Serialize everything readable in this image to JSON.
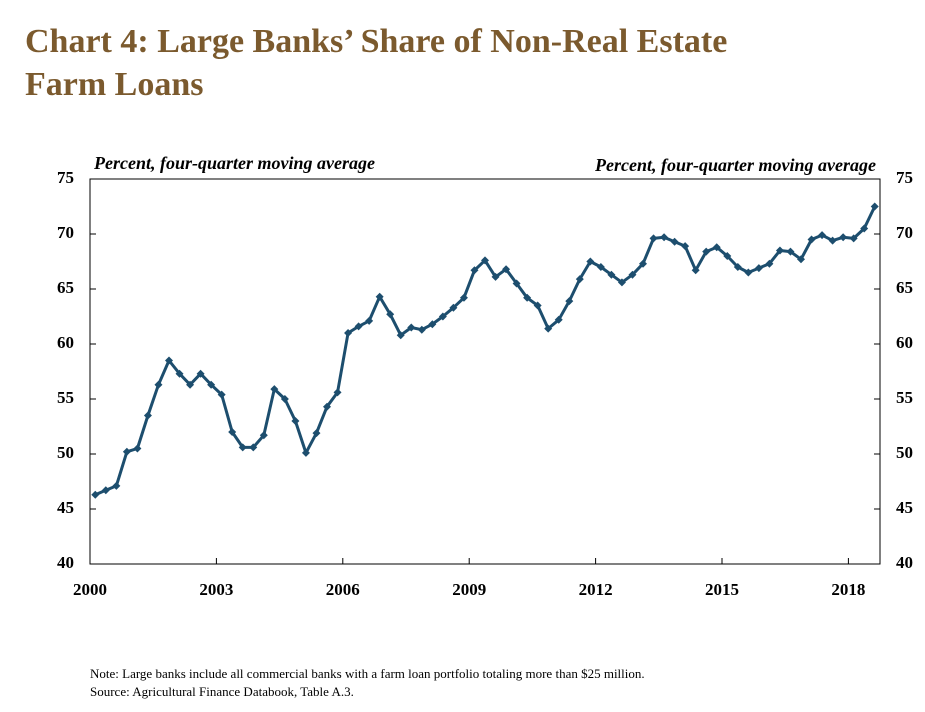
{
  "chart_data": {
    "type": "line",
    "title_lines": [
      "Chart 4: Large Banks’ Share of Non-Real Estate",
      "Farm Loans"
    ],
    "ylabel": "Percent, four-quarter moving average",
    "y2label": "Percent, four-quarter moving average",
    "x": [
      2000.125,
      2000.375,
      2000.625,
      2000.875,
      2001.125,
      2001.375,
      2001.625,
      2001.875,
      2002.125,
      2002.375,
      2002.625,
      2002.875,
      2003.125,
      2003.375,
      2003.625,
      2003.875,
      2004.125,
      2004.375,
      2004.625,
      2004.875,
      2005.125,
      2005.375,
      2005.625,
      2005.875,
      2006.125,
      2006.375,
      2006.625,
      2006.875,
      2007.125,
      2007.375,
      2007.625,
      2007.875,
      2008.125,
      2008.375,
      2008.625,
      2008.875,
      2009.125,
      2009.375,
      2009.625,
      2009.875,
      2010.125,
      2010.375,
      2010.625,
      2010.875,
      2011.125,
      2011.375,
      2011.625,
      2011.875,
      2012.125,
      2012.375,
      2012.625,
      2012.875,
      2013.125,
      2013.375,
      2013.625,
      2013.875,
      2014.125,
      2014.375,
      2014.625,
      2014.875,
      2015.125,
      2015.375,
      2015.625,
      2015.875,
      2016.125,
      2016.375,
      2016.625,
      2016.875,
      2017.125,
      2017.375,
      2017.625,
      2017.875,
      2018.125,
      2018.375,
      2018.625
    ],
    "series": [
      {
        "name": "Large banks' share",
        "color": "#1d4e6e",
        "values": [
          46.3,
          46.7,
          47.1,
          50.2,
          50.5,
          53.5,
          56.3,
          58.5,
          57.3,
          56.3,
          57.3,
          56.3,
          55.4,
          52.0,
          50.6,
          50.6,
          51.7,
          55.9,
          55.0,
          53.0,
          50.1,
          51.9,
          54.3,
          55.6,
          61.0,
          61.6,
          62.1,
          64.3,
          62.7,
          60.8,
          61.5,
          61.3,
          61.8,
          62.5,
          63.3,
          64.2,
          66.7,
          67.6,
          66.1,
          66.8,
          65.5,
          64.2,
          63.5,
          61.4,
          62.2,
          63.9,
          65.9,
          67.5,
          67.0,
          66.3,
          65.6,
          66.3,
          67.3,
          69.6,
          69.7,
          69.3,
          68.9,
          66.7,
          68.4,
          68.8,
          68.0,
          67.0,
          66.5,
          66.9,
          67.3,
          68.5,
          68.4,
          67.7,
          69.5,
          69.9,
          69.4,
          69.7,
          69.6,
          70.5,
          72.5
        ]
      }
    ],
    "xlim": [
      2000,
      2018.75
    ],
    "xticks": [
      2000,
      2003,
      2006,
      2009,
      2012,
      2015,
      2018
    ],
    "ylim": [
      40,
      75
    ],
    "yticks": [
      40,
      45,
      50,
      55,
      60,
      65,
      70,
      75
    ],
    "y2lim": [
      40,
      75
    ],
    "y2ticks": [
      40,
      45,
      50,
      55,
      60,
      65,
      70,
      75
    ],
    "notes": [
      "Note: Large banks include all commercial banks with a farm loan portfolio totaling more than $25 million.",
      "Source: Agricultural Finance Databook, Table A.3."
    ]
  }
}
